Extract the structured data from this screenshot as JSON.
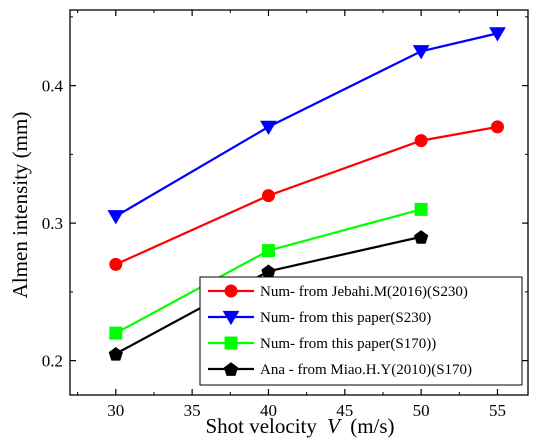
{
  "chart_data": {
    "type": "line",
    "xlabel": "Shot velocity",
    "xlabel_var": "V",
    "xlabel_unit": "(m/s)",
    "ylabel": "Almen intensity (mm)",
    "xlim": [
      27,
      57
    ],
    "ylim": [
      0.175,
      0.455
    ],
    "xticks": [
      30,
      35,
      40,
      45,
      50,
      55
    ],
    "yticks": [
      0.2,
      0.3,
      0.4
    ],
    "ytick_labels": [
      "0.2",
      "0.3",
      "0.4"
    ],
    "grid": false,
    "legend_position": "bottom-right",
    "series": [
      {
        "name": "Num- from Jebahi.M(2016)(S230)",
        "color": "#ff0000",
        "marker": "circle",
        "x": [
          30,
          40,
          50,
          55
        ],
        "y": [
          0.27,
          0.32,
          0.36,
          0.37
        ]
      },
      {
        "name": "Num- from this paper(S230)",
        "color": "#0000ff",
        "marker": "triangle-down",
        "x": [
          30,
          40,
          50,
          55
        ],
        "y": [
          0.305,
          0.37,
          0.425,
          0.438
        ]
      },
      {
        "name": "Num- from this paper(S170))",
        "color": "#00ff00",
        "marker": "square",
        "x": [
          30,
          40,
          50
        ],
        "y": [
          0.22,
          0.28,
          0.31
        ]
      },
      {
        "name": "Ana - from Miao.H.Y(2010)(S170)",
        "color": "#000000",
        "marker": "pentagon",
        "x": [
          30,
          40,
          50
        ],
        "y": [
          0.205,
          0.265,
          0.29
        ]
      }
    ]
  }
}
